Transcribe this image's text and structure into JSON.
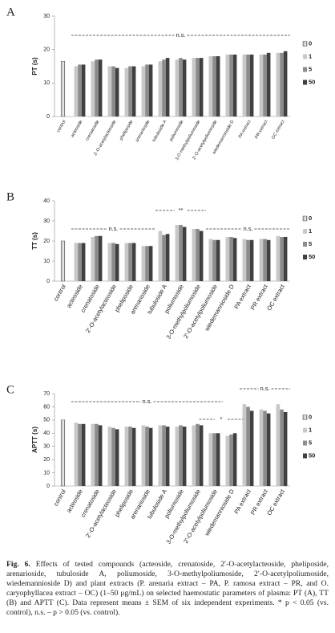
{
  "chart_data": [
    {
      "type": "bar",
      "panel": "A",
      "y_label": "PT (s)",
      "categories": [
        "control",
        "acteoside",
        "crenatoside",
        "2'-O-acetylacteoside",
        "pheliposide",
        "arenarioside",
        "tubuloside A",
        "poliumoside",
        "3-O-methylpoliumoside",
        "2'-O-acetylpoliumoside",
        "wiedemannioside D",
        "PA extract",
        "PR extract",
        "OC extract"
      ],
      "series": [
        {
          "name": "0",
          "color": "#ffffff",
          "hatch": true,
          "values": [
            16.5,
            null,
            null,
            null,
            null,
            null,
            null,
            null,
            null,
            null,
            null,
            null,
            null,
            null
          ]
        },
        {
          "name": "1",
          "color": "#c8c8c8",
          "values": [
            null,
            15,
            16.5,
            15,
            14.5,
            15,
            16.5,
            17,
            17.5,
            18,
            18.5,
            18.5,
            18.5,
            19
          ]
        },
        {
          "name": "5",
          "color": "#8c8c8c",
          "values": [
            null,
            15.5,
            17,
            15,
            15,
            15.5,
            17,
            17.5,
            17.5,
            18,
            18.5,
            18.5,
            18.5,
            19
          ]
        },
        {
          "name": "50",
          "color": "#404040",
          "values": [
            null,
            15.5,
            17,
            14.5,
            15,
            15.5,
            17.5,
            17,
            17.5,
            18,
            18.5,
            18.5,
            19,
            19.5
          ]
        }
      ],
      "ylim": [
        0,
        30
      ],
      "yticks": [
        0,
        10,
        20,
        30
      ],
      "annotations": [
        "n.s."
      ]
    },
    {
      "type": "bar",
      "panel": "B",
      "y_label": "TT (s)",
      "categories": [
        "control",
        "acteoside",
        "crenatoside",
        "2'-O-acetylacteoside",
        "pheliposide",
        "arenarioside",
        "tubuloside A",
        "poliumoside",
        "3-O-methylpoliumoside",
        "2'-O-acetylpoliumoside",
        "wiedemannioside D",
        "PA extract",
        "PR extract",
        "OC extract"
      ],
      "series": [
        {
          "name": "0",
          "color": "#ffffff",
          "hatch": true,
          "values": [
            20,
            null,
            null,
            null,
            null,
            null,
            null,
            null,
            null,
            null,
            null,
            null,
            null,
            null
          ]
        },
        {
          "name": "1",
          "color": "#c8c8c8",
          "values": [
            null,
            19,
            22,
            19,
            19,
            17.5,
            25,
            28,
            26,
            21,
            22,
            21,
            21,
            22.5
          ]
        },
        {
          "name": "5",
          "color": "#8c8c8c",
          "values": [
            null,
            19,
            22.5,
            19,
            19,
            17.5,
            23,
            28,
            26,
            20.5,
            22,
            20.5,
            21,
            22
          ]
        },
        {
          "name": "50",
          "color": "#404040",
          "values": [
            null,
            19,
            22.5,
            18.5,
            19,
            17.5,
            23.5,
            27,
            25,
            20.5,
            21.5,
            20.5,
            20.5,
            22
          ]
        }
      ],
      "ylim": [
        0,
        40
      ],
      "yticks": [
        0,
        10,
        20,
        30,
        40
      ],
      "annotations": [
        "n.s.",
        "**",
        "n.s."
      ]
    },
    {
      "type": "bar",
      "panel": "C",
      "y_label": "APTT (s)",
      "categories": [
        "control",
        "acteoside",
        "crenatoside",
        "2'-O-acetylacteoside",
        "pheliposide",
        "arenarioside",
        "tubuloside A",
        "poliumoside",
        "3-O-methylpoliumoside",
        "2'-O-acetylpoliumoside",
        "wiedemannioside D",
        "PA extract",
        "PR extract",
        "OC extract"
      ],
      "series": [
        {
          "name": "0",
          "color": "#ffffff",
          "hatch": true,
          "values": [
            50,
            null,
            null,
            null,
            null,
            null,
            null,
            null,
            null,
            null,
            null,
            null,
            null,
            null
          ]
        },
        {
          "name": "1",
          "color": "#c8c8c8",
          "values": [
            null,
            48,
            47,
            45,
            45,
            46,
            46,
            45,
            46,
            40,
            38,
            62,
            58,
            62
          ]
        },
        {
          "name": "5",
          "color": "#8c8c8c",
          "values": [
            null,
            47,
            47,
            44,
            45,
            45,
            46,
            46,
            47,
            40,
            39,
            60,
            57,
            58
          ]
        },
        {
          "name": "50",
          "color": "#404040",
          "values": [
            null,
            47,
            46,
            43,
            44,
            44,
            45,
            45,
            46,
            40,
            40,
            57,
            55,
            56
          ]
        }
      ],
      "ylim": [
        0,
        70
      ],
      "yticks": [
        0,
        10,
        20,
        30,
        40,
        50,
        60,
        70
      ],
      "annotations": [
        "n.s.",
        "*",
        "n.s."
      ]
    }
  ],
  "caption": {
    "label": "Fig. 6.",
    "text": "Effects of tested compounds (acteoside, crenatoside, 2′-O-acetylacteoside, pheliposide, arenarioside, tubuloside A, poliumoside, 3-O-methylpoliumoside, 2′-O-acetylpoliumoside, wiedemannioside D) and plant extracts (P. arenaria extract – PA, P. ramosa extract – PR, and O. caryophyllacea extract – OC) (1–50 μg/mL) on selected haemostatic parameters of plasma: PT (A), TT (B) and APTT (C). Data represent means ± SEM of six independent experiments. * p < 0.05 (vs. control), n.s. – p > 0.05 (vs. control)."
  }
}
